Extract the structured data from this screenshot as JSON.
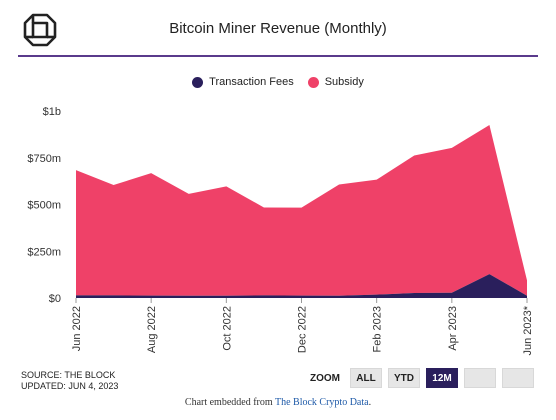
{
  "header": {
    "title": "Bitcoin Miner Revenue (Monthly)"
  },
  "colors": {
    "accent": "#5a3a8c",
    "transaction_fees": "#2a1f5c",
    "subsidy": "#ef4168",
    "active_button": "#2a1f5c",
    "link": "#1e5aa8"
  },
  "chart_data": {
    "type": "area",
    "stacked": true,
    "title": "Bitcoin Miner Revenue (Monthly)",
    "x": [
      "Jun 2022",
      "Jul 2022",
      "Aug 2022",
      "Sep 2022",
      "Oct 2022",
      "Nov 2022",
      "Dec 2022",
      "Jan 2023",
      "Feb 2023",
      "Mar 2023",
      "Apr 2023",
      "May 2023",
      "Jun 2023*"
    ],
    "x_tick_labels": [
      "Jun 2022",
      "Aug 2022",
      "Oct 2022",
      "Dec 2022",
      "Feb 2023",
      "Apr 2023",
      "Jun 2023*"
    ],
    "y_tick_labels": [
      "$0",
      "$250m",
      "$500m",
      "$750m",
      "$1b"
    ],
    "ylim": [
      0,
      1000
    ],
    "y_unit": "$m",
    "series": [
      {
        "name": "Transaction Fees",
        "values": [
          14,
          14,
          13,
          12,
          12,
          14,
          13,
          12,
          18,
          27,
          28,
          128,
          12
        ]
      },
      {
        "name": "Subsidy",
        "values": [
          670,
          590,
          655,
          545,
          585,
          470,
          470,
          595,
          615,
          735,
          775,
          797,
          82
        ]
      }
    ],
    "legend_position": "top-center",
    "grid": false
  },
  "source": {
    "line1": "SOURCE: THE BLOCK",
    "line2": "UPDATED: JUN 4, 2023"
  },
  "zoom": {
    "label": "ZOOM",
    "buttons": [
      "ALL",
      "YTD",
      "12M",
      "",
      ""
    ],
    "active": "12M"
  },
  "footer": {
    "prefix": "Chart embedded from ",
    "link_text": "The Block Crypto Data",
    "suffix": "."
  }
}
